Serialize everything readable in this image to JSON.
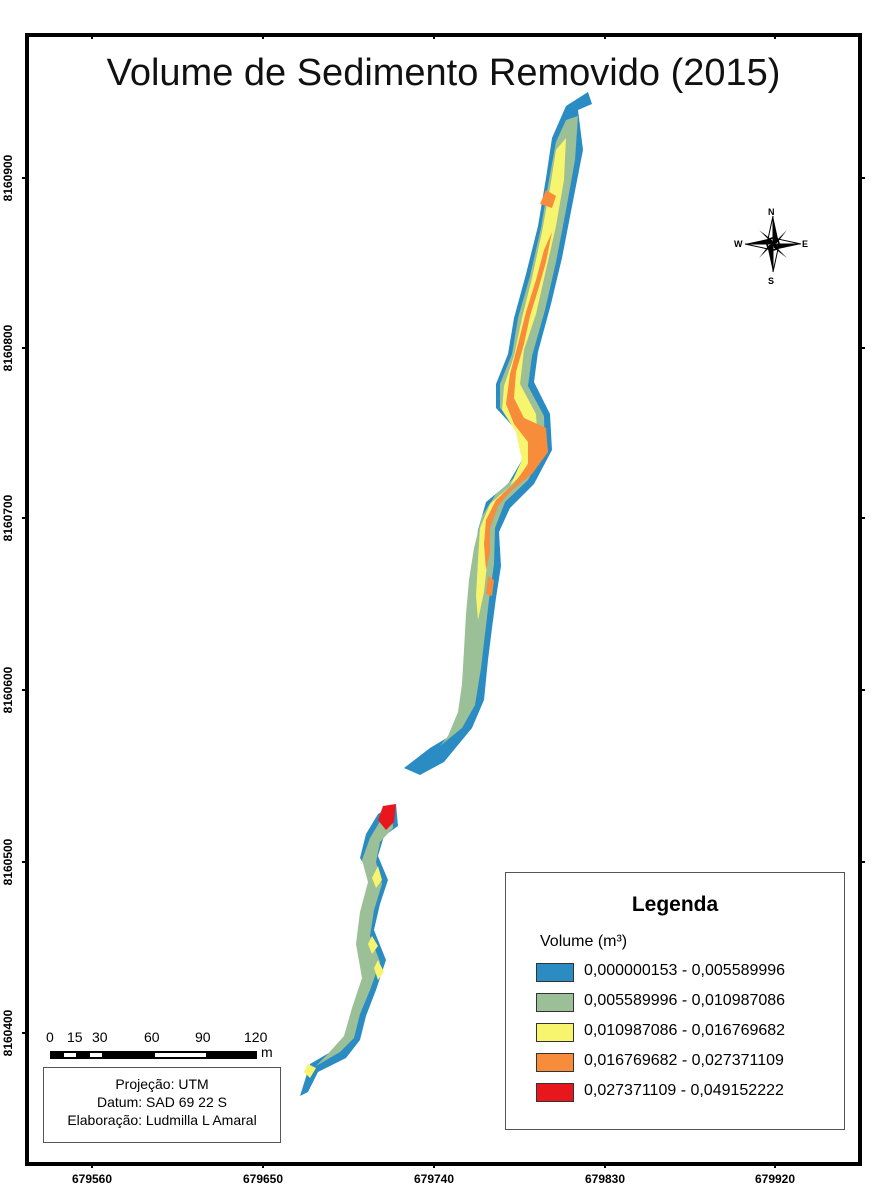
{
  "title": "Volume de Sedimento Removido (2015)",
  "axes": {
    "x_ticks": [
      "679560",
      "679650",
      "679740",
      "679830",
      "679920"
    ],
    "y_ticks": [
      "8160900",
      "8160800",
      "8160700",
      "8160600",
      "8160500",
      "8160400"
    ]
  },
  "north_arrow": {
    "n": "N",
    "s": "S",
    "e": "E",
    "w": "W",
    "icon": "compass-rose-icon"
  },
  "legend": {
    "title": "Legenda",
    "subtitle": "Volume (m³)",
    "items": [
      {
        "label": "0,000000153 - 0,005589996",
        "color": "#2b8cc4"
      },
      {
        "label": "0,005589996 - 0,010987086",
        "color": "#9bbf96"
      },
      {
        "label": "0,010987086 - 0,016769682",
        "color": "#f7f56e"
      },
      {
        "label": "0,016769682 - 0,027371109",
        "color": "#f78c3a"
      },
      {
        "label": "0,027371109 - 0,049152222",
        "color": "#e8171d"
      }
    ]
  },
  "scale_bar": {
    "labels": [
      "0",
      "15",
      "30",
      "60",
      "90",
      "120"
    ],
    "unit": "m"
  },
  "info": {
    "projection": "Projeção: UTM",
    "datum": "Datum: SAD 69 22 S",
    "author": "Elaboração: Ludmilla L Amaral"
  }
}
